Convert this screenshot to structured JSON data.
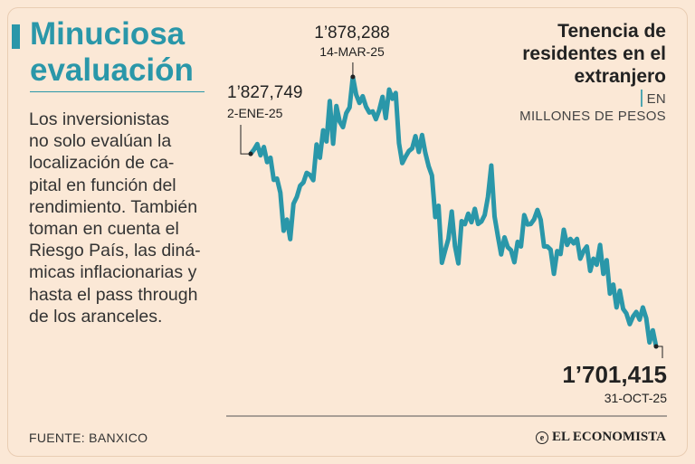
{
  "headline": "Minuciosa evaluación",
  "body": "Los inversionistas\nno solo evalúan la\nlocalización de ca-\npital en función del\nrendimiento. También\ntoman en cuenta el\nRiesgo País, las diná-\nmicas inflacionarias y\nhasta el pass through\nde los aranceles.",
  "title": "Tenencia de\nresidentes en el\nextranjero",
  "title_sep": "|",
  "unit_line1": "EN",
  "unit_line2": "MILLONES DE PESOS",
  "source": "FUENTE: BANXICO",
  "brand": "EL ECONOMISTA",
  "brand_icon": "globe-icon",
  "colors": {
    "line": "#2a97a9",
    "accent": "#2a97a9",
    "background": "#fbe8d6"
  },
  "chart_data": {
    "type": "line",
    "title": "Tenencia de residentes en el extranjero",
    "ylabel": "",
    "xlabel": "",
    "x_range": [
      "2025-01-02",
      "2025-10-31"
    ],
    "ylim": [
      1695000,
      1885000
    ],
    "grid": false,
    "legend": "none",
    "series": [
      {
        "name": "",
        "values": [
          1827749,
          1830500,
          1834200,
          1826800,
          1832300,
          1822300,
          1825200,
          1810700,
          1811600,
          1802300,
          1777300,
          1784600,
          1771800,
          1795000,
          1799500,
          1806800,
          1809000,
          1815300,
          1813900,
          1810500,
          1833900,
          1825200,
          1843200,
          1835900,
          1862400,
          1834400,
          1859200,
          1849000,
          1845300,
          1854500,
          1858300,
          1878288,
          1866600,
          1861200,
          1865600,
          1858700,
          1854900,
          1855600,
          1850500,
          1856400,
          1865200,
          1851200,
          1870000,
          1863900,
          1867700,
          1834700,
          1821700,
          1826000,
          1829600,
          1831400,
          1839400,
          1829000,
          1840100,
          1828500,
          1819600,
          1813600,
          1786300,
          1793700,
          1756300,
          1764400,
          1771900,
          1789900,
          1767200,
          1755900,
          1783600,
          1781600,
          1788500,
          1782900,
          1791700,
          1781800,
          1783400,
          1787600,
          1799500,
          1820100,
          1786700,
          1773700,
          1761800,
          1773000,
          1766500,
          1764500,
          1756600,
          1770000,
          1767000,
          1787600,
          1781500,
          1781800,
          1784800,
          1791000,
          1784500,
          1767000,
          1767000,
          1765000,
          1749000,
          1764000,
          1762000,
          1778000,
          1768000,
          1772000,
          1769000,
          1772000,
          1759000,
          1764000,
          1767000,
          1751000,
          1759000,
          1755000,
          1768000,
          1749000,
          1758000,
          1736000,
          1742000,
          1727000,
          1738000,
          1726000,
          1723000,
          1716000,
          1721000,
          1724000,
          1719000,
          1727000,
          1720000,
          1704000,
          1712000,
          1701415
        ]
      }
    ],
    "annotations": [
      {
        "value": "1’827,749",
        "date": "2-ENE-25",
        "point_index": 0
      },
      {
        "value": "1’878,288",
        "date": "14-MAR-25",
        "point_index": 31
      },
      {
        "value": "1’701,415",
        "date": "31-OCT-25",
        "point_index": 123
      }
    ]
  }
}
